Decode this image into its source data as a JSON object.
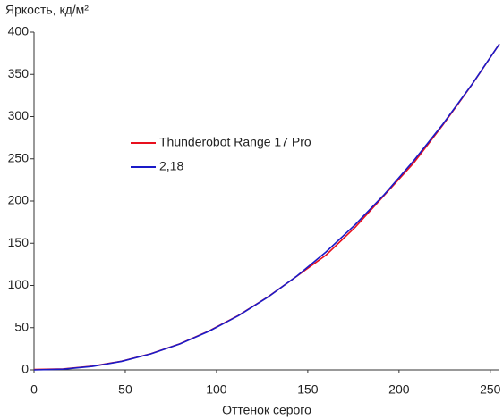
{
  "chart_data": {
    "type": "line",
    "y_label": "Яркость, кд/м²",
    "x_label": "Оттенок серого",
    "x": [
      0,
      16,
      32,
      48,
      64,
      80,
      96,
      112,
      128,
      144,
      160,
      176,
      192,
      208,
      224,
      240,
      255
    ],
    "series": [
      {
        "name": "Thunderobot Range 17 Pro",
        "color": "#e8101e",
        "values": [
          0.5,
          1.2,
          4.5,
          10.3,
          19.2,
          31,
          46.2,
          64.5,
          86.2,
          111,
          136,
          169,
          207,
          245,
          290,
          338,
          386
        ]
      },
      {
        "name": "2,18",
        "color": "#1a1ac8",
        "values": [
          0,
          0.9,
          4.2,
          10.1,
          19,
          30.8,
          45.9,
          64.2,
          86,
          111.1,
          139.7,
          172,
          207.9,
          247.6,
          291,
          338.3,
          386
        ]
      }
    ],
    "xlim": [
      0,
      255
    ],
    "xticks": [
      0,
      50,
      100,
      150,
      200,
      250
    ],
    "ylim": [
      0,
      400
    ],
    "yticks": [
      0,
      50,
      100,
      150,
      200,
      250,
      300,
      350,
      400
    ],
    "legend": "center",
    "grid": false
  }
}
